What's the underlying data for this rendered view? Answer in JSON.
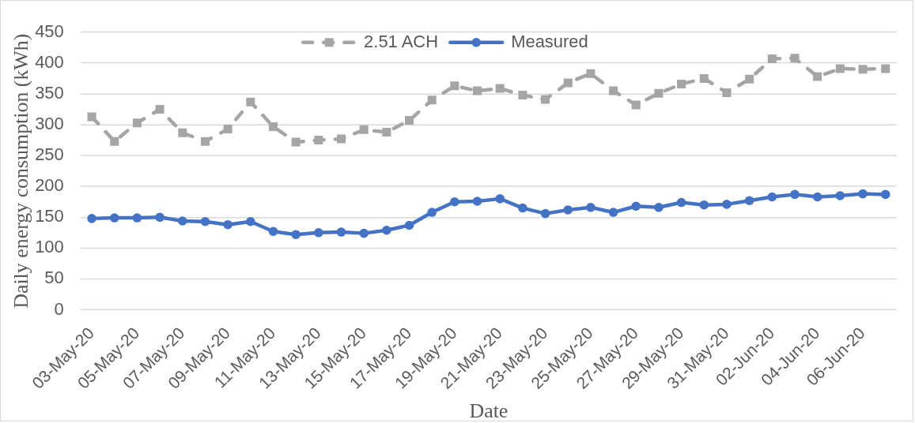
{
  "chart_data": {
    "type": "line",
    "xlabel": "Date",
    "ylabel": "Daily energy consumption (kWh)",
    "categories": [
      "03-May-20",
      null,
      "05-May-20",
      null,
      "07-May-20",
      null,
      "09-May-20",
      null,
      "11-May-20",
      null,
      "13-May-20",
      null,
      "15-May-20",
      null,
      "17-May-20",
      null,
      "19-May-20",
      null,
      "21-May-20",
      null,
      "23-May-20",
      null,
      "25-May-20",
      null,
      "27-May-20",
      null,
      "29-May-20",
      null,
      "31-May-20",
      null,
      "02-Jun-20",
      null,
      "04-Jun-20",
      null,
      "06-Jun-20",
      null
    ],
    "series": [
      {
        "name": "2.51 ACH",
        "color": "#a5a5a5",
        "marker": "square",
        "line_style": "dashed",
        "values": [
          313,
          273,
          303,
          325,
          287,
          273,
          293,
          337,
          297,
          272,
          275,
          277,
          292,
          288,
          307,
          340,
          363,
          355,
          359,
          348,
          341,
          368,
          383,
          355,
          332,
          351,
          366,
          375,
          352,
          374,
          407,
          408,
          378,
          391,
          390,
          391
        ]
      },
      {
        "name": "Measured",
        "color": "#4472c4",
        "marker": "circle",
        "line_style": "solid",
        "values": [
          148,
          149,
          149,
          150,
          144,
          143,
          138,
          143,
          127,
          122,
          125,
          126,
          124,
          129,
          137,
          158,
          175,
          176,
          180,
          165,
          156,
          162,
          166,
          158,
          168,
          166,
          174,
          170,
          171,
          177,
          183,
          187,
          183,
          185,
          188,
          187
        ]
      }
    ],
    "ylim": [
      0,
      450
    ],
    "yticks": [
      0,
      50,
      100,
      150,
      200,
      250,
      300,
      350,
      400,
      450
    ],
    "grid": "y",
    "legend": "top"
  }
}
